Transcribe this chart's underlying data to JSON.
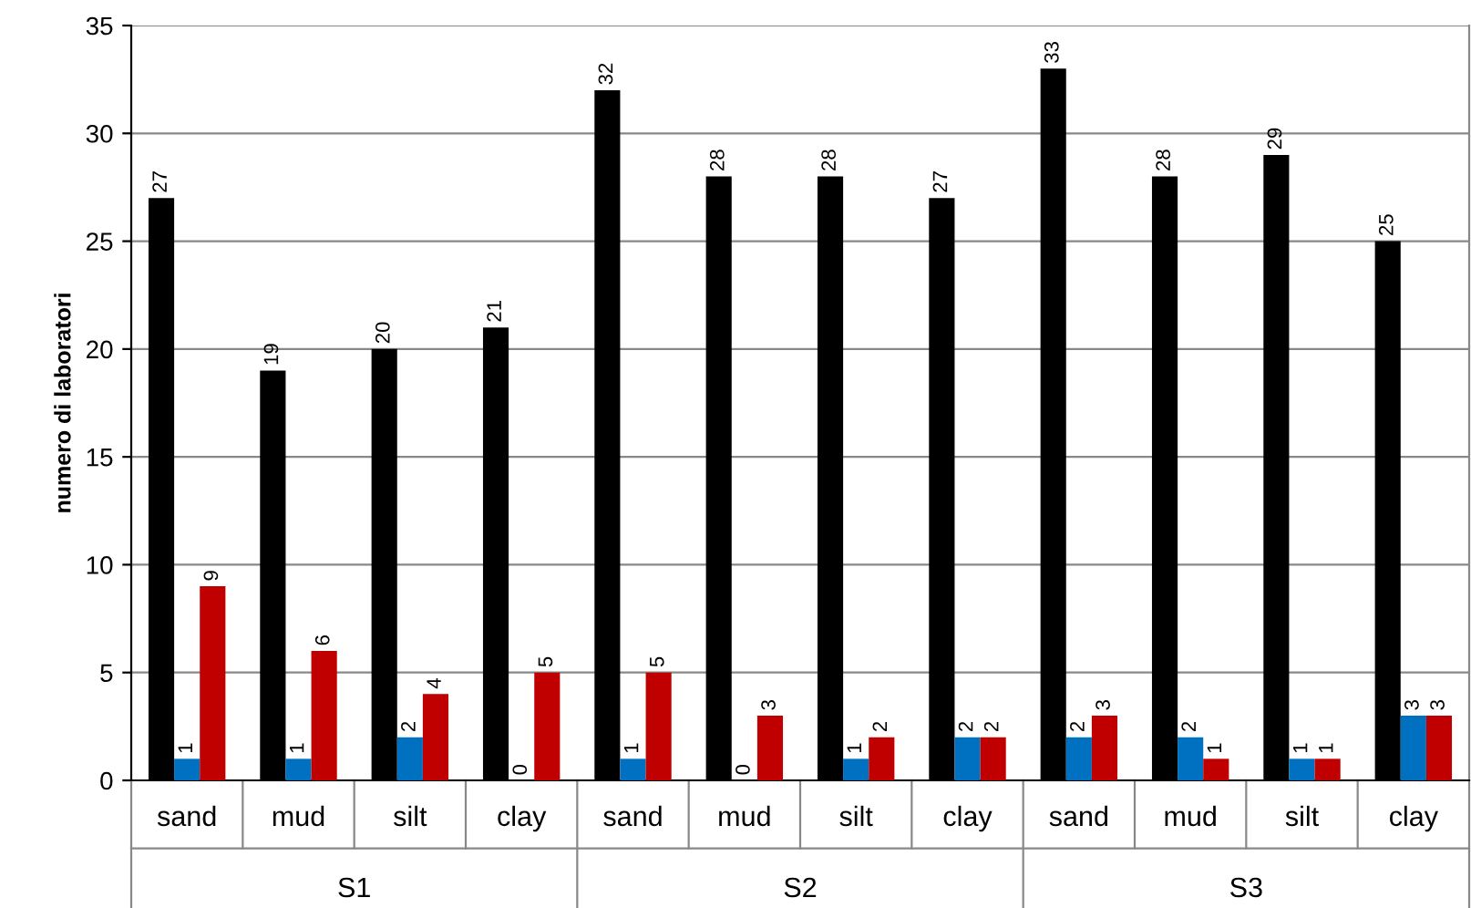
{
  "chart_data": {
    "type": "bar",
    "ylabel": "numero di laboratori",
    "categories": [
      "sand",
      "mud",
      "silt",
      "clay",
      "sand",
      "mud",
      "silt",
      "clay",
      "sand",
      "mud",
      "silt",
      "clay"
    ],
    "series": [
      {
        "color": "#000000",
        "values": [
          27,
          19,
          20,
          21,
          32,
          28,
          28,
          27,
          33,
          28,
          29,
          25
        ]
      },
      {
        "color": "#0070c0",
        "values": [
          1,
          1,
          2,
          0,
          1,
          0,
          1,
          2,
          2,
          2,
          1,
          3
        ]
      },
      {
        "color": "#c00000",
        "values": [
          9,
          6,
          4,
          5,
          5,
          3,
          2,
          2,
          3,
          1,
          1,
          3
        ]
      }
    ],
    "annotations": [
      "S1",
      "S2",
      "S3"
    ],
    "ylim": [
      0,
      35
    ],
    "yticks": [
      0,
      5,
      10,
      15,
      20,
      25,
      30,
      35
    ],
    "grid": "y",
    "data_labels": true,
    "legend": false
  }
}
